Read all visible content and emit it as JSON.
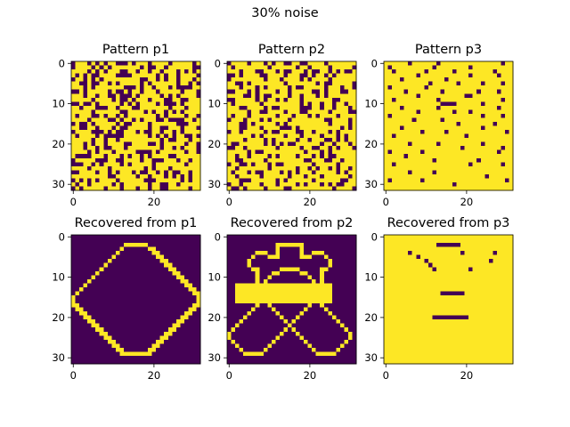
{
  "figure": {
    "suptitle": "30% noise"
  },
  "colors": {
    "low": "#440154",
    "high": "#fde725",
    "axis": "#000000"
  },
  "chart_data": [
    {
      "type": "heatmap",
      "title": "Pattern p1",
      "size": [
        32,
        32
      ],
      "xticks": [
        0,
        20
      ],
      "yticks": [
        0,
        10,
        20,
        30
      ],
      "rows": [
        "01110101011000101110111101111101",
        "01111010101111111010011011111100",
        "11110101011100110110110111010101",
        "10101001111000011111101011011110",
        "01101010111111111001101011011101",
        "11001001101011111010111111011010",
        "11101011111110001011011101000011",
        "00101111101001011011101111101110",
        "11101101100100010111110101011110",
        "11111011110100101110111001100111",
        "00100101111101010111101000101111",
        "11011100011011100111111101110111",
        "11111011111100111101011010101111",
        "10111001011010111111101011110110",
        "11110111100101101011100100001101",
        "01001011111010011110111111000111",
        "11001101110100111110110011101110",
        "01111000101001110100110110101111",
        "10111101000001111110101010110010",
        "11111011011011111111110100111011",
        "11101011011110011110010111110110",
        "11101101001110111111110110101110",
        "11110101110111110000101111110110",
        "10000111011101011010111100111111",
        "01111100011001111011000111011011",
        "00011010111101011111011111110111",
        "11110111101111111101011101111111",
        "00111101101011101001101010011011",
        "11111111100111110110111010101011",
        "01010101111011111100011111101011",
        "10110111110101111110110011011111",
        "01011111011101110110110011111011"
      ]
    },
    {
      "type": "heatmap",
      "title": "Pattern p2",
      "size": [
        32,
        32
      ],
      "xticks": [
        0,
        20
      ],
      "yticks": [
        0,
        10,
        20,
        30
      ],
      "rows": [
        "01111011101011001100111101111111",
        "10111111110111111011011110111110",
        "11101110011101001110100110101001",
        "00101111001111011100101101011111",
        "01111111101110111101011110111111",
        "11001011111111011111110100111110",
        "11101110101111101001111101110110",
        "00111010111101101111100101110011",
        "11110010100111101101110101111111",
        "00111110101101011101111111001111",
        "10111111011111111101011011011011",
        "11100111101001111100011011011101",
        "11111011001111011100111110111100",
        "10111011111101110111010111101111",
        "01110111010111101111111100111101",
        "11100101111101011111111110111101",
        "11100111011110001011111111110101",
        "01101111101001111001101110101111",
        "11111101011111011101111011101011",
        "11110111101011111011011100101011",
        "10011111101010100111111011011101",
        "00110111111101111101100110101110",
        "11111010011111111110111010111111",
        "11011011110101111011101010011111",
        "11001111101111111110011100110111",
        "01100101110100111111101111101111",
        "11011111110111111011010110101101",
        "10111010011110101011101111101011",
        "11011111011111101110111011111101",
        "11100011111101011111101111110011",
        "01101111011101111010111010100111",
        "10010111101111001111111111011110"
      ]
    },
    {
      "type": "heatmap",
      "title": "Pattern p3",
      "size": [
        32,
        32
      ],
      "xticks": [
        0,
        20
      ],
      "yticks": [
        0,
        10,
        20,
        30
      ],
      "rows": [
        "11111101111110111111111111111011",
        "10111111111101111111101111111111",
        "11011111110111111011111111101111",
        "11111111011111111111101111110111",
        "11110111111111101111111111111111",
        "11111111111011111101111101111011",
        "10111111110111111111111111111111",
        "11111011111111011111111011110111",
        "11111111011111111111001111111111",
        "11011111111110111111111111111011",
        "11111111111111000011111101111111",
        "11110111111110111111111111110111",
        "11111111011111111011101111111111",
        "10111111111111111111111101111011",
        "11111110111111011111111111111111",
        "11111111111111111101111111101111",
        "11110111111111111111111101111111",
        "11111111101111101111111111111101",
        "11011111111111111111011111111111",
        "11111111111111111111111111111111",
        "11111101111110111111111101111111",
        "11111111111111111110111111111011",
        "10111111101111111111111111110111",
        "11111011111111111111111111111111",
        "11111111111101111111111011111111",
        "11011111111111111111101111111011",
        "11111111111111111111111111111111",
        "11111101111101111111111111111111",
        "11111111111111111111111110111111",
        "10111111101111111111111111111101",
        "11111111111111111011111111111111",
        "11111111111111111111111111111111"
      ]
    },
    {
      "type": "heatmap",
      "title": "Recovered from p1",
      "size": [
        32,
        32
      ],
      "xticks": [
        0,
        20
      ],
      "yticks": [
        0,
        10,
        20,
        30
      ],
      "rows": [
        "00000000000000000000000000000000",
        "00000000000000000000000000000000",
        "00000000000001111110000000000000",
        "00000000000010000001100000000000",
        "00000000000100000000110000000000",
        "00000000001000000000011000000000",
        "00000000010000000000001100000000",
        "00000000100000000000000110000000",
        "00000001000000000000000011000000",
        "00000010000000000000000001100000",
        "00000100000000000000000000110000",
        "00001000000000000000000000011000",
        "00010000000000000000000000001100",
        "00100000000000000000000000000110",
        "01000000000000000000000000000011",
        "10000000000000000000000000000001",
        "10000000000000000000000000000001",
        "11000000000000000000000000000011",
        "01100000000000000000000000000110",
        "00110000000000000000000000001100",
        "00011000000000000000000000011000",
        "00001100000000000000000000110000",
        "00000110000000000000000001100000",
        "00000011000000000000000011000000",
        "00000001100000000000000110000000",
        "00000000110000000000001100000000",
        "00000000011000000000011000000000",
        "00000000001100000000110000000000",
        "00000000000110000001100000000000",
        "00000000000011111111000000000000",
        "00000000000000000000000000000000",
        "00000000000000000000000000000000"
      ]
    },
    {
      "type": "heatmap",
      "title": "Recovered from p2",
      "size": [
        32,
        32
      ],
      "xticks": [
        0,
        20
      ],
      "yticks": [
        0,
        10,
        20,
        30
      ],
      "rows": [
        "00000000000000000000000000000000",
        "00000000000000000000000000000000",
        "00000000000011111110000000000000",
        "00000000000010000010000000000000",
        "00000001110010000010011100000000",
        "00000010001110000011100010000000",
        "00000100000000000000000001000000",
        "00000100000000000000000001000000",
        "00000011000001111100000110000000",
        "00000001000110000011000100000000",
        "00000001001000000000100100000000",
        "00000001010000000000010100000000",
        "00111111111111111111111111000000",
        "00111111111111111111111111000000",
        "00111111111111111111111111000000",
        "00111111111111111111111111000000",
        "00111111111111111111111111000000",
        "00000001001000000000100100000000",
        "00000010000100000001000010000000",
        "00000100000010000010000001000000",
        "00001000000001000100000000100000",
        "00010000000000101000000000010000",
        "00100000000000010000000000001000",
        "01000000000000101000000000000100",
        "10000000000001000100000000000010",
        "10000000000010000010000000000010",
        "01000000000100000001000000000100",
        "00100000001000000000100000001000",
        "00010000010000000000010000010000",
        "00001111100000000000001111100000",
        "00000000000000000000000000000000",
        "00000000000000000000000000000000"
      ]
    },
    {
      "type": "heatmap",
      "title": "Recovered from p3",
      "size": [
        32,
        32
      ],
      "xticks": [
        0,
        20
      ],
      "yticks": [
        0,
        10,
        20,
        30
      ],
      "rows": [
        "11111111111111111111111111111111",
        "11111111111111111111111111111111",
        "11111111111110000001111111111111",
        "11111111111111111111111111111111",
        "11111101111111111110111111101111",
        "11111111011111111111111111111111",
        "11111111110111111111111111011111",
        "11111111111011111111111111111111",
        "11111111111101111111101111111111",
        "11111111111111111111111111111111",
        "11111111111111111111111111111111",
        "11111111111111111111111111111111",
        "11111111111111111111111111111111",
        "11111111111111111111111111111111",
        "11111111111111000000111111111111",
        "11111111111111111111111111111111",
        "11111111111111111111111111111111",
        "11111111111111111111111111111111",
        "11111111111111111111111111111111",
        "11111111111111111111111111111111",
        "11111111111100000000011111111111",
        "11111111111111111111111111111111",
        "11111111111111111111111111111111",
        "11111111111111111111111111111111",
        "11111111111111111111111111111111",
        "11111111111111111111111111111111",
        "11111111111111111111111111111111",
        "11111111111111111111111111111111",
        "11111111111111111111111111111111",
        "11111111111111111111111111111111",
        "11111111111111111111111111111111",
        "11111111111111111111111111111111"
      ]
    }
  ]
}
